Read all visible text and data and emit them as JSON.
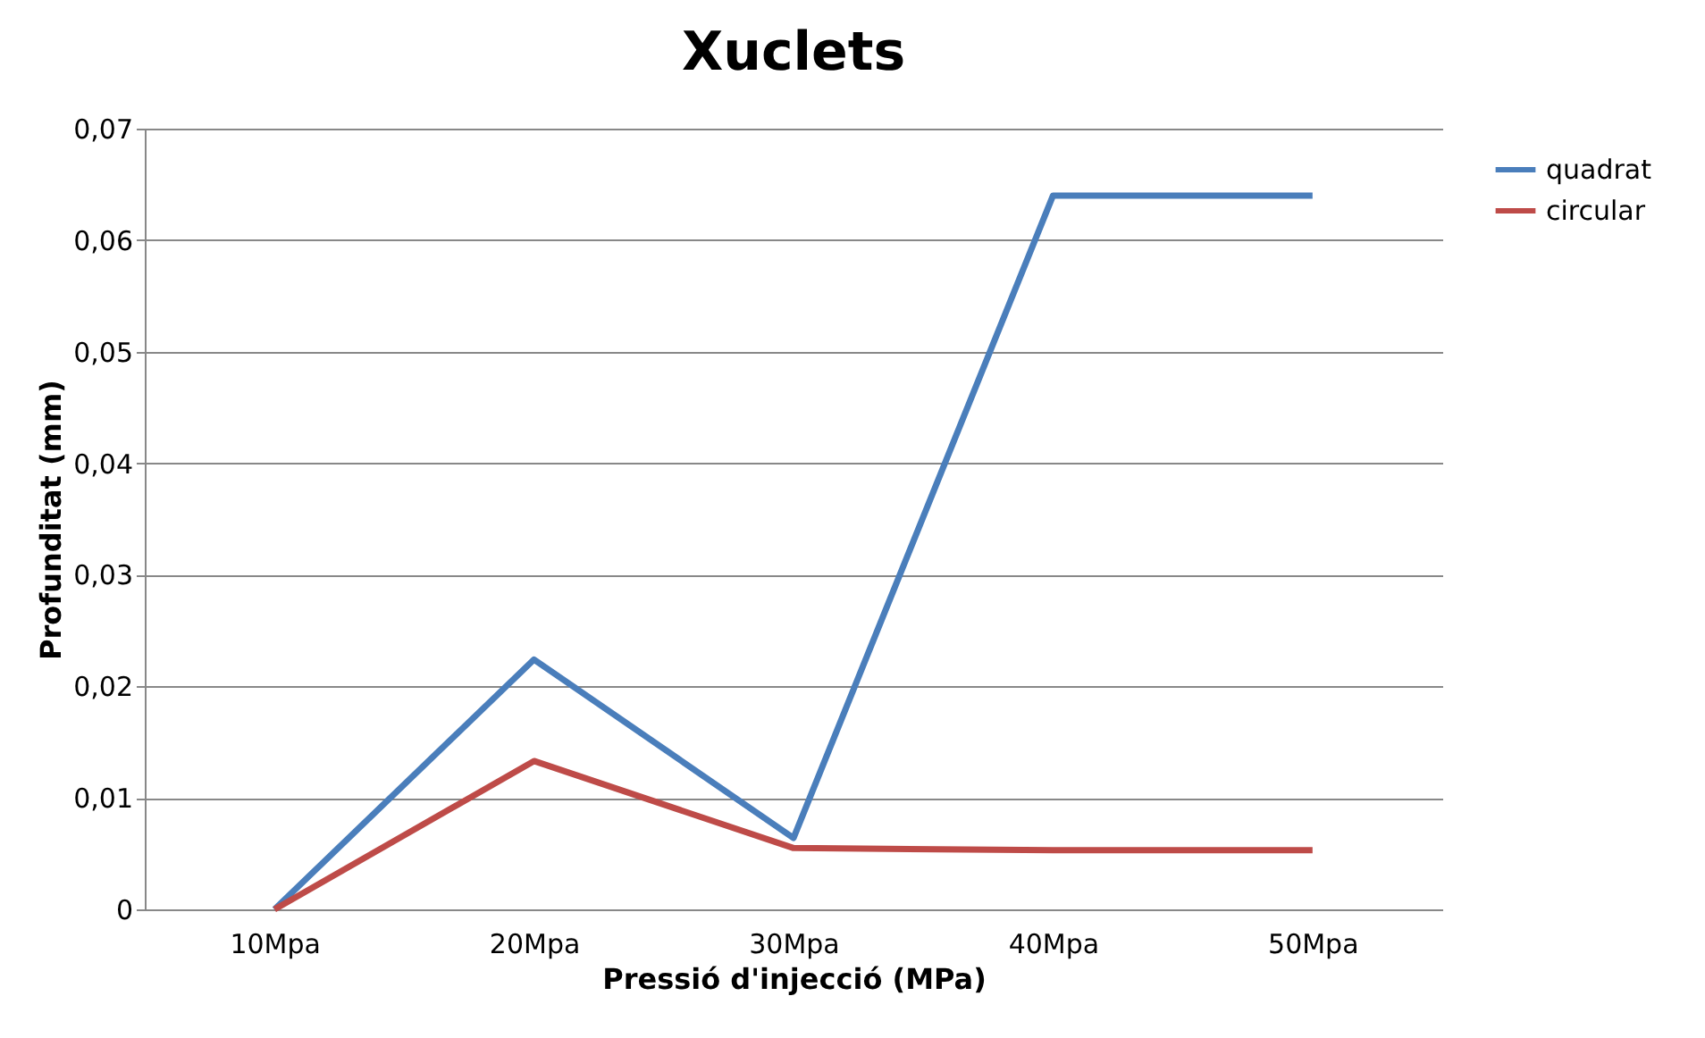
{
  "chart_data": {
    "type": "line",
    "title": "Xuclets",
    "xlabel": "Pressió d'injecció (MPa)",
    "ylabel": "Profunditat (mm)",
    "categories": [
      "10Mpa",
      "20Mpa",
      "30Mpa",
      "40Mpa",
      "50Mpa"
    ],
    "series": [
      {
        "name": "quadrat",
        "color": "#4a7ebb",
        "values": [
          0,
          0.0224,
          0.0064,
          0.064,
          0.064
        ]
      },
      {
        "name": "circular",
        "color": "#be4b48",
        "values": [
          0,
          0.0133,
          0.0055,
          0.0053,
          0.0053
        ]
      }
    ],
    "ylim": [
      0,
      0.07
    ],
    "yticks": [
      {
        "value": 0,
        "label": "0"
      },
      {
        "value": 0.01,
        "label": "0,01"
      },
      {
        "value": 0.02,
        "label": "0,02"
      },
      {
        "value": 0.03,
        "label": "0,03"
      },
      {
        "value": 0.04,
        "label": "0,04"
      },
      {
        "value": 0.05,
        "label": "0,05"
      },
      {
        "value": 0.06,
        "label": "0,06"
      },
      {
        "value": 0.07,
        "label": "0,07"
      }
    ],
    "grid": "y",
    "legend": "right",
    "marker": "none",
    "line_style": "solid"
  }
}
